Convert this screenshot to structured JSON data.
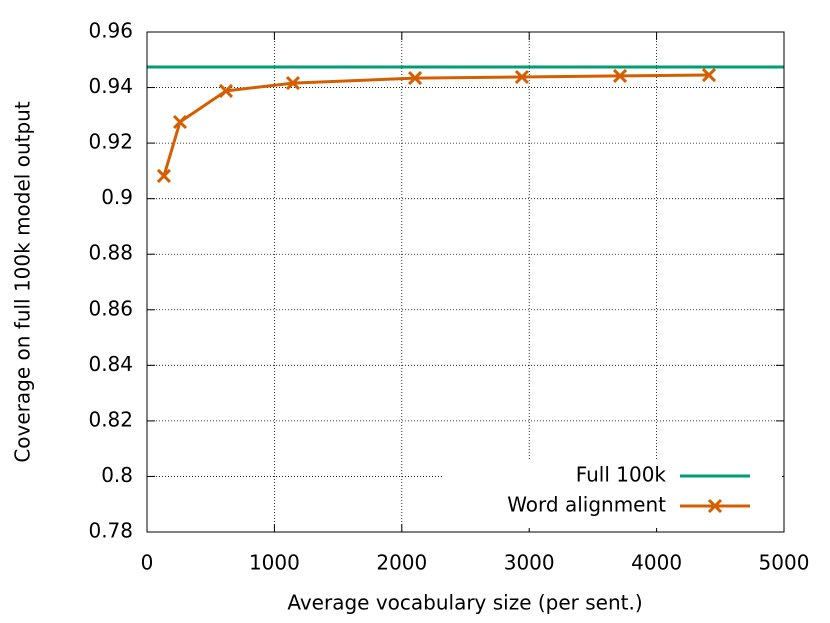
{
  "chart_data": {
    "type": "line",
    "xlabel": "Average vocabulary size (per sent.)",
    "ylabel": "Coverage on full 100k model output",
    "xlim": [
      0,
      5000
    ],
    "xticks": [
      0,
      1000,
      2000,
      3000,
      4000,
      5000
    ],
    "ylim": [
      0.78,
      0.96
    ],
    "yticks": [
      0.78,
      0.8,
      0.82,
      0.84,
      0.86,
      0.88,
      0.9,
      0.92,
      0.94,
      0.96
    ],
    "grid": true,
    "legend": "bottom-right",
    "series": [
      {
        "name": "Full 100k",
        "color": "#009e73",
        "marker": "none",
        "x": [
          0,
          5000
        ],
        "values": [
          0.9474,
          0.9474
        ]
      },
      {
        "name": "Word alignment",
        "color": "#d55e00",
        "marker": "x",
        "x": [
          133,
          259,
          620,
          1146,
          2104,
          2943,
          3713,
          4411
        ],
        "values": [
          0.9082,
          0.9276,
          0.9388,
          0.9416,
          0.9434,
          0.9438,
          0.9442,
          0.9445
        ]
      }
    ]
  }
}
